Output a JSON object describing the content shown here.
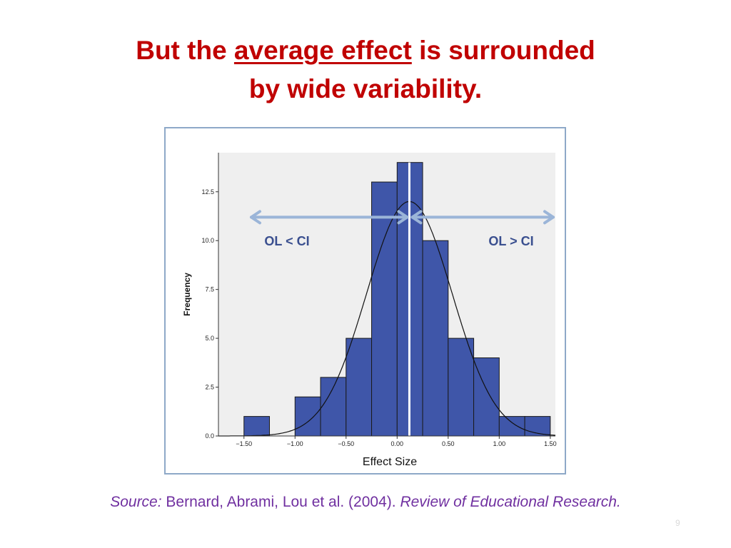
{
  "slide": {
    "title_part1": "But the ",
    "title_underlined": "average effect",
    "title_part2": " is surrounded",
    "title_line2": "by wide variability.",
    "source_label": "Source:",
    "source_authors": " Bernard, Abrami, Lou et al. (2004). ",
    "source_journal": "Review of Educational Research.",
    "page_number": "9",
    "colors": {
      "title": "#c00000",
      "source": "#7030a0",
      "bar_fill": "#3f56a9",
      "arrow": "#9bb5d8",
      "annotation": "#3a4f8f",
      "plot_bg": "#efefef"
    }
  },
  "chart_data": {
    "type": "bar",
    "subtype": "histogram",
    "xlabel": "Effect Size",
    "ylabel": "Frequency",
    "xlim": [
      -1.75,
      1.55
    ],
    "ylim": [
      0,
      14.5
    ],
    "xticks": [
      -1.5,
      -1.0,
      -0.5,
      0.0,
      0.5,
      1.0,
      1.5
    ],
    "xtick_labels": [
      "−1.50",
      "−1.00",
      "−0.50",
      "0.00",
      "0.50",
      "1.00",
      "1.50"
    ],
    "yticks": [
      0,
      2.5,
      5,
      7.5,
      10,
      12.5
    ],
    "ytick_labels": [
      "0.0",
      "2.5",
      "5.0",
      "7.5",
      "10.0",
      "12.5"
    ],
    "bin_edges": [
      -1.5,
      -1.25,
      -1.0,
      -0.75,
      -0.5,
      -0.25,
      0.0,
      0.25,
      0.5,
      0.75,
      1.0,
      1.25,
      1.5
    ],
    "counts": [
      1,
      0,
      2,
      3,
      5,
      13,
      14,
      10,
      5,
      4,
      1,
      1
    ],
    "normal_curve": {
      "mean": 0.12,
      "sd": 0.42,
      "peak": 12.0
    },
    "mean_line": 0.12,
    "annotations": {
      "left_label": "OL < CI",
      "right_label": "OL > CI"
    },
    "grid": false,
    "legend": "none"
  }
}
